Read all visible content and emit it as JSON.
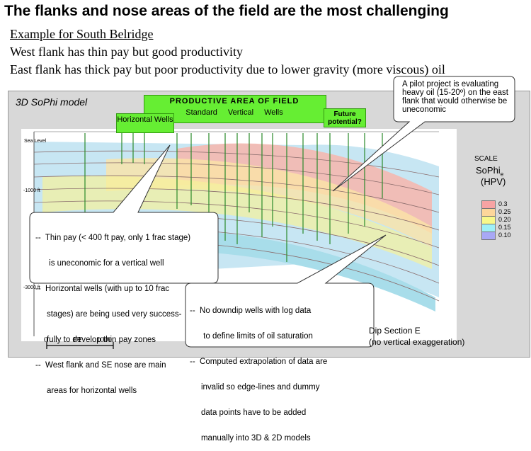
{
  "title": "The flanks and nose areas of the field are the most challenging",
  "lines": {
    "l1": "Example for South Belridge",
    "l2": "West flank has thin pay but good productivity",
    "l3": "East flank has thick pay but poor productivity due to lower gravity (more viscous) oil"
  },
  "panel": {
    "title": "3D SoPhi model",
    "productive_title": "PRODUCTIVE   AREA   OF   FIELD",
    "productive_sub": "Standard Vertical Wells",
    "horizontal_wells": "Horizontal Wells",
    "future": "Future potential?",
    "sea_level": "Sea Level",
    "depth_1000": "-1000 ft",
    "depth_3000": "-3000 ft",
    "dip_section": "Dip Section E",
    "no_vert": "(no vertical exaggeration)",
    "scale_zero": "0",
    "scale_ft": "FT",
    "scale_1000": "1000"
  },
  "scale": {
    "title": "SCALE",
    "name": "SoPhi",
    "subscript": "e",
    "unit": "(HPV)",
    "items": [
      {
        "label": "0.3",
        "color": "#f7a3a3"
      },
      {
        "label": "0.25",
        "color": "#fdd69a"
      },
      {
        "label": "0.20",
        "color": "#f8f88a"
      },
      {
        "label": "0.15",
        "color": "#9ff0f7"
      },
      {
        "label": "0.10",
        "color": "#a8a8f5"
      }
    ]
  },
  "callouts": {
    "pilot": [
      "A pilot project is evaluating",
      "heavy oil (15-20º) on the east",
      "flank that would otherwise be",
      "uneconomic"
    ],
    "thin": [
      "--  Thin pay (< 400 ft pay, only 1 frac stage)",
      "      is uneconomic for a vertical well",
      "--  Horizontal wells (with up to 10 frac",
      "     stages) are being used very success-",
      "     fully to develop thin pay zones",
      "--  West flank and SE nose are main",
      "     areas for horizontal wells"
    ],
    "downdip": [
      "--  No downdip wells with log data",
      "      to define limits of oil saturation",
      "--  Computed extrapolation of data are",
      "     invalid so edge-lines and dummy",
      "     data points have to be added",
      "     manually into 3D & 2D models"
    ]
  }
}
